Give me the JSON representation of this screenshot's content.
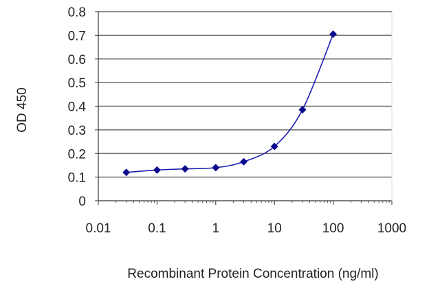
{
  "chart_data": {
    "type": "line",
    "x_scale": "log",
    "x": [
      0.03,
      0.1,
      0.3,
      1,
      3,
      10,
      30,
      100
    ],
    "series": [
      {
        "values": [
          0.12,
          0.13,
          0.135,
          0.14,
          0.165,
          0.23,
          0.385,
          0.705
        ]
      }
    ],
    "xticks": [
      "0.01",
      "0.1",
      "1",
      "10",
      "100",
      "1000"
    ],
    "xtick_values": [
      0.01,
      0.1,
      1,
      10,
      100,
      1000
    ],
    "yticks": [
      "0",
      "0.1",
      "0.2",
      "0.3",
      "0.4",
      "0.5",
      "0.6",
      "0.7",
      "0.8"
    ],
    "ytick_values": [
      0,
      0.1,
      0.2,
      0.3,
      0.4,
      0.5,
      0.6,
      0.7,
      0.8
    ],
    "xlim": [
      0.01,
      1000
    ],
    "ylim": [
      0,
      0.8
    ],
    "xlabel": "Recombinant Protein Concentration (ng/ml)",
    "ylabel": "OD 450",
    "grid": "horizontal",
    "colors": {
      "line": "#1b1bb0",
      "marker": "#0a0a8c",
      "grid": "#6e6e6e",
      "axis": "#333333"
    }
  }
}
